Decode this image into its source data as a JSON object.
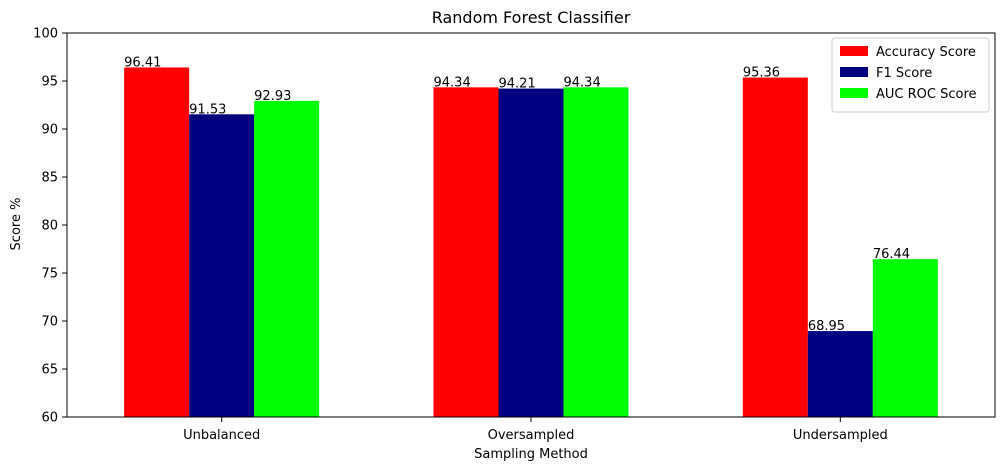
{
  "chart_data": {
    "type": "bar",
    "title": "Random Forest Classifier",
    "xlabel": "Sampling Method",
    "ylabel": "Score %",
    "categories": [
      "Unbalanced",
      "Oversampled",
      "Undersampled"
    ],
    "series": [
      {
        "name": "Accuracy Score",
        "color": "#ff0000",
        "values": [
          96.41,
          94.34,
          95.36
        ]
      },
      {
        "name": "F1 Score",
        "color": "#000080",
        "values": [
          91.53,
          94.21,
          68.95
        ]
      },
      {
        "name": "AUC ROC Score",
        "color": "#00ff00",
        "values": [
          92.93,
          94.34,
          76.44
        ]
      }
    ],
    "ylim": [
      60,
      100
    ],
    "yticks": [
      60,
      65,
      70,
      75,
      80,
      85,
      90,
      95,
      100
    ],
    "grid": false,
    "legend_position": "top-right"
  }
}
